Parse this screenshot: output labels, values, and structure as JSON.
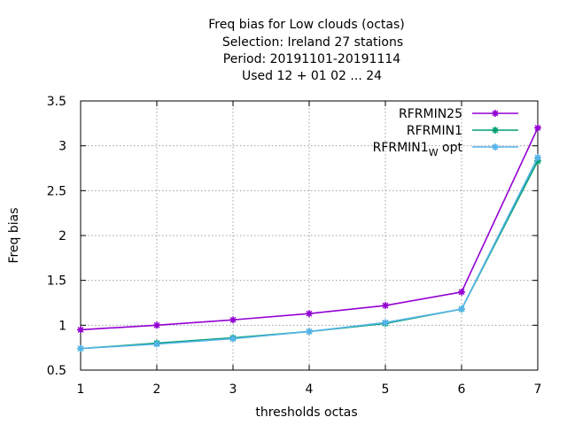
{
  "chart_data": {
    "type": "line",
    "title_lines": [
      "Freq bias  for Low clouds (octas)",
      "Selection: Ireland      27 stations",
      "Period: 20191101-20191114",
      "Used  12 + 01 02 ... 24"
    ],
    "xlabel": "thresholds octas",
    "ylabel": "Freq bias",
    "x": [
      1,
      2,
      3,
      4,
      5,
      6,
      7
    ],
    "xlim": [
      1,
      7
    ],
    "ylim": [
      0.5,
      3.5
    ],
    "x_ticks": [
      "1",
      "2",
      "3",
      "4",
      "5",
      "6",
      "7"
    ],
    "y_ticks": [
      "0.5",
      "1",
      "1.5",
      "2",
      "2.5",
      "3",
      "3.5"
    ],
    "grid": true,
    "legend_position": "top-right",
    "series": [
      {
        "name": "RFRMIN25",
        "color": "#9400d3",
        "values": [
          0.95,
          1.0,
          1.06,
          1.13,
          1.22,
          1.37,
          3.2
        ]
      },
      {
        "name": "RFRMIN1",
        "color": "#009e73",
        "values": [
          0.74,
          0.8,
          0.86,
          0.93,
          1.02,
          1.18,
          2.83
        ]
      },
      {
        "name": "RFRMIN1",
        "name_subscript": "W",
        "name_suffix": "opt",
        "color": "#56b4e9",
        "values": [
          0.74,
          0.79,
          0.85,
          0.93,
          1.03,
          1.18,
          2.87
        ]
      }
    ]
  }
}
